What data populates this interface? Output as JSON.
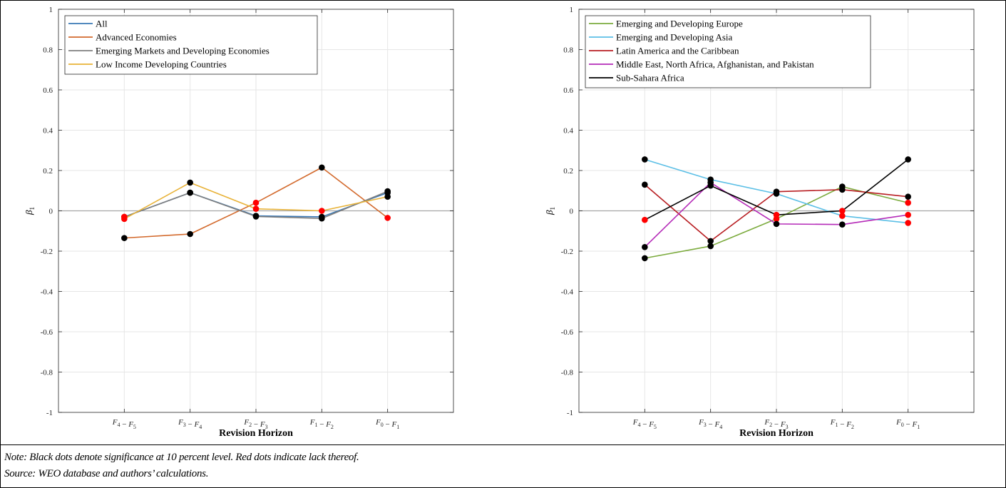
{
  "colors": {
    "all": "#3a78b5",
    "advanced": "#d36a2d",
    "emerging_markets": "#7f7f7f",
    "low_income": "#e8b237",
    "europe": "#7cab3e",
    "asia": "#5bbfe6",
    "latam": "#b81e22",
    "mena": "#b52bb8",
    "ssa": "#000000",
    "sig_dot": "#000000",
    "insig_dot": "#ff0000"
  },
  "notes": {
    "note": "Note: Black dots denote significance at 10 percent level. Red dots indicate lack thereof.",
    "source": "Source: WEO database and authors’ calculations."
  },
  "chart_data": [
    {
      "type": "line",
      "xlabel": "Revision Horizon",
      "ylabel": "β1",
      "ylim": [
        -1,
        1
      ],
      "yticks": [
        "1",
        "0.8",
        "0.6",
        "0.4",
        "0.2",
        "0",
        "-0.2",
        "-0.4",
        "-0.6",
        "-0.8",
        "-1"
      ],
      "categories": [
        "F4 − F5",
        "F3 − F4",
        "F2 − F3",
        "F1 − F2",
        "F0 − F1"
      ],
      "grid": true,
      "legend_position": "top-left",
      "series": [
        {
          "name": "All",
          "color_key": "all",
          "values": [
            -0.03,
            0.09,
            -0.025,
            -0.03,
            0.09
          ],
          "significant": [
            false,
            true,
            true,
            true,
            true
          ]
        },
        {
          "name": "Advanced Economies",
          "color_key": "advanced",
          "values": [
            -0.135,
            -0.115,
            0.04,
            0.215,
            -0.035
          ],
          "significant": [
            true,
            true,
            false,
            true,
            false
          ]
        },
        {
          "name": "Emerging Markets and Developing Economies",
          "color_key": "emerging_markets",
          "values": [
            -0.03,
            0.09,
            -0.028,
            -0.038,
            0.097
          ],
          "significant": [
            false,
            true,
            true,
            true,
            true
          ]
        },
        {
          "name": "Low Income Developing Countries",
          "color_key": "low_income",
          "values": [
            -0.04,
            0.14,
            0.01,
            0.0,
            0.07
          ],
          "significant": [
            false,
            true,
            false,
            false,
            true
          ]
        }
      ]
    },
    {
      "type": "line",
      "xlabel": "Revision Horizon",
      "ylabel": "β1",
      "ylim": [
        -1,
        1
      ],
      "yticks": [
        "1",
        "0.8",
        "0.6",
        "0.4",
        "0.2",
        "0",
        "-0.2",
        "-0.4",
        "-0.6",
        "-0.8",
        "-1"
      ],
      "categories": [
        "F4 − F5",
        "F3 − F4",
        "F2 − F3",
        "F1 − F2",
        "F0 − F1"
      ],
      "grid": true,
      "legend_position": "top-left",
      "series": [
        {
          "name": "Emerging and Developing Europe",
          "color_key": "europe",
          "values": [
            -0.235,
            -0.175,
            -0.04,
            0.12,
            0.04
          ],
          "significant": [
            true,
            true,
            false,
            true,
            false
          ]
        },
        {
          "name": "Emerging and Developing Asia",
          "color_key": "asia",
          "values": [
            0.255,
            0.155,
            0.085,
            -0.025,
            -0.06
          ],
          "significant": [
            true,
            true,
            true,
            false,
            false
          ]
        },
        {
          "name": "Latin America and the Caribbean",
          "color_key": "latam",
          "values": [
            0.13,
            -0.15,
            0.095,
            0.105,
            0.07
          ],
          "significant": [
            true,
            true,
            true,
            true,
            true
          ]
        },
        {
          "name": "Middle East, North Africa, Afghanistan, and Pakistan",
          "color_key": "mena",
          "values": [
            -0.18,
            0.14,
            -0.065,
            -0.068,
            -0.02
          ],
          "significant": [
            true,
            true,
            true,
            true,
            false
          ]
        },
        {
          "name": "Sub-Sahara Africa",
          "color_key": "ssa",
          "values": [
            -0.045,
            0.125,
            -0.02,
            0.0,
            0.255
          ],
          "significant": [
            false,
            true,
            false,
            false,
            true
          ]
        }
      ]
    }
  ]
}
